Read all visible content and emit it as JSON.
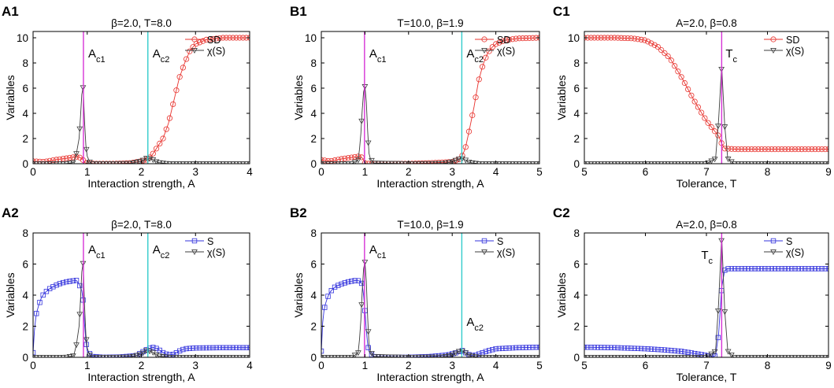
{
  "chart_data": [
    {
      "id": "A1",
      "panel_label": "A1",
      "type": "line",
      "title": "β=2.0, T=8.0",
      "xlabel": "Interaction strength, A",
      "ylabel": "Variables",
      "xlim": [
        0,
        4
      ],
      "ylim": [
        0,
        10.5
      ],
      "xticks": [
        0,
        1,
        2,
        3,
        4
      ],
      "yticks": [
        0,
        2,
        4,
        6,
        8,
        10
      ],
      "legend": "top-right",
      "vlines": [
        {
          "x": 0.93,
          "label": "A",
          "sub": "c1",
          "color": "#d633d6"
        },
        {
          "x": 2.12,
          "label": "A",
          "sub": "c2",
          "color": "#33cccc"
        }
      ],
      "series": [
        {
          "name": "SD",
          "marker": "circle",
          "color": "#e8332e",
          "x": [
            0,
            0.2,
            0.4,
            0.6,
            0.8,
            0.9,
            0.95,
            1.0,
            1.2,
            1.5,
            1.8,
            2.0,
            2.12,
            2.2,
            2.4,
            2.5,
            2.6,
            2.7,
            2.8,
            2.9,
            3.0,
            3.2,
            3.5,
            3.8,
            4.0
          ],
          "y": [
            0.2,
            0.15,
            0.3,
            0.42,
            0.55,
            0.45,
            0.1,
            0.02,
            0.0,
            0.0,
            0.05,
            0.2,
            0.35,
            0.7,
            2.0,
            3.2,
            5.0,
            6.8,
            8.0,
            9.0,
            9.5,
            9.85,
            10,
            10,
            10
          ]
        },
        {
          "name": "χ(S)",
          "marker": "triangle-down",
          "color": "#3d3d3d",
          "x": [
            0,
            0.6,
            0.75,
            0.8,
            0.85,
            0.88,
            0.9,
            0.93,
            0.96,
            1.0,
            1.05,
            1.1,
            1.5,
            1.8,
            2.0,
            2.1,
            2.2,
            2.3,
            2.5,
            3.0,
            4.0
          ],
          "y": [
            0,
            0,
            0.1,
            0.8,
            2.0,
            4.0,
            5.5,
            6.2,
            2.0,
            0.6,
            0.1,
            0,
            0,
            0.02,
            0.2,
            0.45,
            0.35,
            0.1,
            0,
            0,
            0
          ]
        }
      ]
    },
    {
      "id": "B1",
      "panel_label": "B1",
      "type": "line",
      "title": "T=10.0, β=1.9",
      "xlabel": "Interaction strength, A",
      "ylabel": "Variables",
      "xlim": [
        0,
        5
      ],
      "ylim": [
        0,
        10.5
      ],
      "xticks": [
        0,
        1,
        2,
        3,
        4,
        5
      ],
      "yticks": [
        0,
        2,
        4,
        6,
        8,
        10
      ],
      "legend": "top-right",
      "vlines": [
        {
          "x": 0.99,
          "label": "A",
          "sub": "c1",
          "color": "#d633d6"
        },
        {
          "x": 3.22,
          "label": "A",
          "sub": "c2",
          "color": "#33cccc"
        }
      ],
      "series": [
        {
          "name": "SD",
          "marker": "circle",
          "color": "#e8332e",
          "x": [
            0,
            0.2,
            0.5,
            0.8,
            0.9,
            0.95,
            1.0,
            1.05,
            1.2,
            1.5,
            2.0,
            2.5,
            3.0,
            3.2,
            3.3,
            3.4,
            3.5,
            3.6,
            3.7,
            3.8,
            3.9,
            4.0,
            4.2,
            4.5,
            5.0
          ],
          "y": [
            0.3,
            0.2,
            0.4,
            0.55,
            0.6,
            0.4,
            0.05,
            0.0,
            0.0,
            0.0,
            0.0,
            0.05,
            0.15,
            0.4,
            1.2,
            2.8,
            4.5,
            6.5,
            7.8,
            8.7,
            9.2,
            9.5,
            9.8,
            9.95,
            10
          ]
        },
        {
          "name": "χ(S)",
          "marker": "triangle-down",
          "color": "#3d3d3d",
          "x": [
            0,
            0.7,
            0.85,
            0.9,
            0.95,
            0.99,
            1.03,
            1.07,
            1.1,
            1.2,
            2.0,
            2.8,
            3.0,
            3.1,
            3.2,
            3.3,
            3.4,
            3.6,
            4.0,
            5.0
          ],
          "y": [
            0,
            0,
            0.3,
            2.0,
            5.0,
            6.5,
            5.0,
            2.0,
            0.5,
            0.05,
            0,
            0.02,
            0.15,
            0.3,
            0.45,
            0.3,
            0.1,
            0,
            0,
            0
          ]
        }
      ]
    },
    {
      "id": "C1",
      "panel_label": "C1",
      "type": "line",
      "title": "A=2.0, β=0.8",
      "xlabel": "Tolerance, T",
      "ylabel": "Variables",
      "xlim": [
        5,
        9
      ],
      "ylim": [
        0,
        10.5
      ],
      "xticks": [
        5,
        6,
        7,
        8,
        9
      ],
      "yticks": [
        0,
        2,
        4,
        6,
        8,
        10
      ],
      "legend": "top-right",
      "vlines": [
        {
          "x": 7.25,
          "label": "T",
          "sub": "c",
          "color": "#d633d6"
        }
      ],
      "series": [
        {
          "name": "SD",
          "marker": "circle",
          "color": "#e8332e",
          "x": [
            5,
            5.5,
            5.8,
            6.0,
            6.2,
            6.4,
            6.6,
            6.8,
            7.0,
            7.1,
            7.2,
            7.25,
            7.3,
            7.5,
            8.0,
            9.0
          ],
          "y": [
            10,
            10,
            9.95,
            9.8,
            9.3,
            8.4,
            6.8,
            5.0,
            3.4,
            2.8,
            2.2,
            1.6,
            1.2,
            1.15,
            1.15,
            1.15
          ]
        },
        {
          "name": "χ(S)",
          "marker": "triangle-down",
          "color": "#3d3d3d",
          "x": [
            5,
            7.0,
            7.15,
            7.2,
            7.25,
            7.3,
            7.35,
            7.45,
            9.0
          ],
          "y": [
            0,
            0,
            0.4,
            3.5,
            7.8,
            3.0,
            0.4,
            0,
            0
          ]
        }
      ]
    },
    {
      "id": "A2",
      "panel_label": "A2",
      "type": "line",
      "title": "β=2.0, T=8.0",
      "xlabel": "Interaction strength, A",
      "ylabel": "Variables",
      "xlim": [
        0,
        4
      ],
      "ylim": [
        0,
        8
      ],
      "xticks": [
        0,
        1,
        2,
        3,
        4
      ],
      "yticks": [
        0,
        2,
        4,
        6,
        8
      ],
      "legend": "top-right",
      "vlines": [
        {
          "x": 0.93,
          "label": "A",
          "sub": "c1",
          "color": "#d633d6"
        },
        {
          "x": 2.12,
          "label": "A",
          "sub": "c2",
          "color": "#33cccc"
        }
      ],
      "series": [
        {
          "name": "S",
          "marker": "square",
          "color": "#3333dd",
          "x": [
            0,
            0.03,
            0.06,
            0.1,
            0.15,
            0.2,
            0.3,
            0.4,
            0.5,
            0.6,
            0.7,
            0.8,
            0.85,
            0.9,
            0.93,
            0.96,
            1.0,
            1.1,
            1.3,
            1.6,
            1.9,
            2.0,
            2.1,
            2.2,
            2.3,
            2.4,
            2.5,
            2.6,
            2.7,
            2.8,
            3.0,
            3.5,
            4.0
          ],
          "y": [
            0.3,
            2.0,
            2.8,
            3.3,
            3.8,
            4.1,
            4.4,
            4.6,
            4.75,
            4.85,
            4.9,
            4.95,
            4.7,
            4.3,
            3.5,
            1.5,
            0.4,
            0.05,
            0.0,
            0.02,
            0.1,
            0.3,
            0.5,
            0.65,
            0.55,
            0.3,
            0.15,
            0.2,
            0.4,
            0.55,
            0.6,
            0.62,
            0.62
          ]
        },
        {
          "name": "χ(S)",
          "marker": "triangle-down",
          "color": "#3d3d3d",
          "x": [
            0,
            0.6,
            0.75,
            0.8,
            0.85,
            0.88,
            0.9,
            0.93,
            0.96,
            1.0,
            1.05,
            1.1,
            1.5,
            1.8,
            2.0,
            2.1,
            2.2,
            2.3,
            2.5,
            3.0,
            4.0
          ],
          "y": [
            0,
            0,
            0.1,
            0.8,
            2.0,
            4.0,
            5.5,
            6.2,
            2.0,
            0.6,
            0.1,
            0,
            0,
            0.02,
            0.2,
            0.45,
            0.35,
            0.1,
            0,
            0,
            0
          ]
        }
      ]
    },
    {
      "id": "B2",
      "panel_label": "B2",
      "type": "line",
      "title": "T=10.0, β=1.9",
      "xlabel": "Interaction strength, A",
      "ylabel": "Variables",
      "xlim": [
        0,
        5
      ],
      "ylim": [
        0,
        8
      ],
      "xticks": [
        0,
        1,
        2,
        3,
        4,
        5
      ],
      "yticks": [
        0,
        2,
        4,
        6,
        8
      ],
      "legend": "top-right",
      "vlines": [
        {
          "x": 0.99,
          "label": "A",
          "sub": "c1",
          "color": "#d633d6"
        },
        {
          "x": 3.22,
          "label": "A",
          "sub": "c2",
          "color": "#33cccc"
        }
      ],
      "series": [
        {
          "name": "S",
          "marker": "square",
          "color": "#3333dd",
          "x": [
            0,
            0.03,
            0.06,
            0.1,
            0.15,
            0.2,
            0.3,
            0.4,
            0.5,
            0.6,
            0.7,
            0.8,
            0.9,
            0.95,
            1.0,
            1.05,
            1.1,
            1.2,
            1.5,
            2.0,
            2.5,
            2.9,
            3.1,
            3.22,
            3.3,
            3.4,
            3.5,
            3.6,
            3.8,
            4.0,
            4.5,
            5.0
          ],
          "y": [
            0.4,
            2.2,
            3.0,
            3.5,
            3.9,
            4.2,
            4.5,
            4.65,
            4.75,
            4.85,
            4.9,
            4.95,
            4.9,
            4.6,
            3.0,
            1.0,
            0.3,
            0.05,
            0.0,
            0.0,
            0.05,
            0.15,
            0.3,
            0.45,
            0.3,
            0.15,
            0.1,
            0.2,
            0.4,
            0.55,
            0.62,
            0.65
          ]
        },
        {
          "name": "χ(S)",
          "marker": "triangle-down",
          "color": "#3d3d3d",
          "x": [
            0,
            0.7,
            0.85,
            0.9,
            0.95,
            0.99,
            1.03,
            1.07,
            1.1,
            1.2,
            2.0,
            2.8,
            3.0,
            3.1,
            3.2,
            3.3,
            3.4,
            3.6,
            4.0,
            5.0
          ],
          "y": [
            0,
            0,
            0.3,
            2.0,
            5.0,
            6.5,
            5.0,
            2.0,
            0.5,
            0.05,
            0,
            0.02,
            0.15,
            0.3,
            0.45,
            0.3,
            0.1,
            0,
            0,
            0
          ]
        }
      ]
    },
    {
      "id": "C2",
      "panel_label": "C2",
      "type": "line",
      "title": "A=2.0, β=0.8",
      "xlabel": "Tolerance, T",
      "ylabel": "Variables",
      "xlim": [
        5,
        9
      ],
      "ylim": [
        0,
        8
      ],
      "xticks": [
        5,
        6,
        7,
        8,
        9
      ],
      "yticks": [
        0,
        2,
        4,
        6,
        8
      ],
      "legend": "top-right",
      "vlines": [
        {
          "x": 7.25,
          "label": "T",
          "sub": "c",
          "color": "#d633d6"
        }
      ],
      "series": [
        {
          "name": "S",
          "marker": "square",
          "color": "#3333dd",
          "x": [
            5,
            5.5,
            6.0,
            6.3,
            6.6,
            6.8,
            7.0,
            7.1,
            7.15,
            7.2,
            7.25,
            7.3,
            7.35,
            7.5,
            8.0,
            9.0
          ],
          "y": [
            0.65,
            0.62,
            0.55,
            0.48,
            0.38,
            0.25,
            0.12,
            0.05,
            0.1,
            1.5,
            4.5,
            5.6,
            5.7,
            5.7,
            5.7,
            5.7
          ]
        },
        {
          "name": "χ(S)",
          "marker": "triangle-down",
          "color": "#3d3d3d",
          "x": [
            5,
            7.0,
            7.15,
            7.2,
            7.25,
            7.3,
            7.35,
            7.45,
            9.0
          ],
          "y": [
            0,
            0,
            0.4,
            3.5,
            7.8,
            3.0,
            0.4,
            0,
            0
          ]
        }
      ]
    }
  ]
}
